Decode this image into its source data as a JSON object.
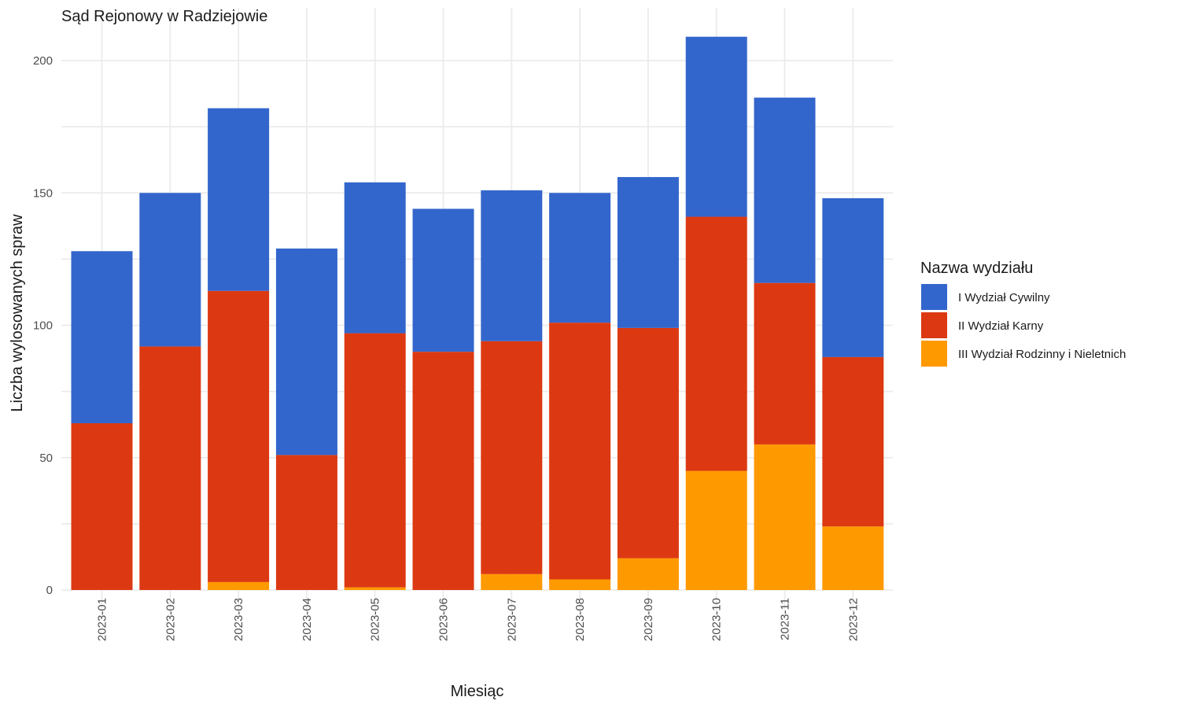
{
  "chart_data": {
    "type": "bar",
    "stacked": true,
    "title": "Sąd Rejonowy w Radziejowie",
    "xlabel": "Miesiąc",
    "ylabel": "Liczba wylosowanych spraw",
    "ylim": [
      0,
      215
    ],
    "yticks": [
      0,
      50,
      100,
      150,
      200
    ],
    "grid": true,
    "legend_position": "right",
    "legend_title": "Nazwa wydziału",
    "categories": [
      "2023-01",
      "2023-02",
      "2023-03",
      "2023-04",
      "2023-05",
      "2023-06",
      "2023-07",
      "2023-08",
      "2023-09",
      "2023-10",
      "2023-11",
      "2023-12"
    ],
    "series": [
      {
        "name": "I Wydział Cywilny",
        "color": "#3366cc",
        "values": [
          65,
          58,
          69,
          78,
          57,
          54,
          57,
          49,
          57,
          68,
          70,
          60
        ]
      },
      {
        "name": "II Wydział Karny",
        "color": "#dc3912",
        "values": [
          63,
          92,
          110,
          51,
          96,
          90,
          88,
          97,
          87,
          96,
          61,
          64
        ]
      },
      {
        "name": "III Wydział Rodzinny i Nieletnich",
        "color": "#ff9900",
        "values": [
          0,
          0,
          3,
          0,
          1,
          0,
          6,
          4,
          12,
          45,
          55,
          24
        ]
      }
    ]
  }
}
